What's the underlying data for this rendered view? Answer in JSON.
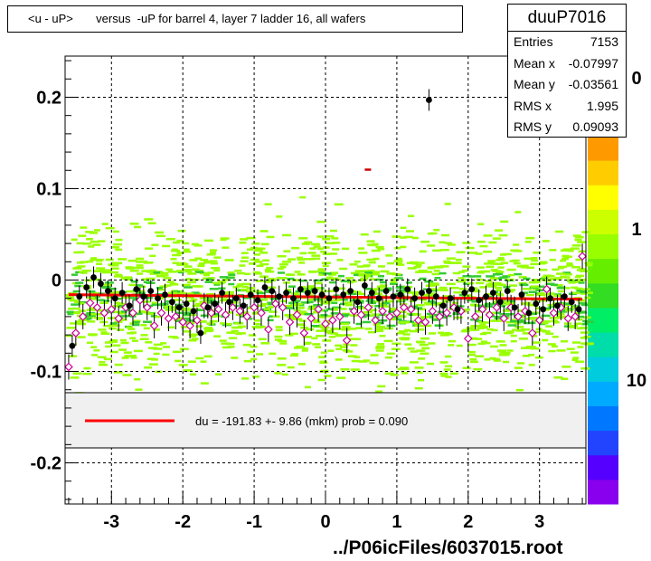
{
  "title": "<u - uP>       versus  -uP for barrel 4, layer 7 ladder 16, all wafers",
  "stats": {
    "name": "duuP7016",
    "rows": [
      {
        "key": "Entries",
        "value": "7153"
      },
      {
        "key": "Mean x",
        "value": "-0.07997"
      },
      {
        "key": "Mean y",
        "value": "-0.03561"
      },
      {
        "key": "RMS x",
        "value": "1.995"
      },
      {
        "key": "RMS y",
        "value": "0.09093"
      }
    ]
  },
  "fit_label": "du = -191.83 +-  9.86 (mkm) prob = 0.090",
  "footer": "../P06icFiles/6037015.root",
  "colors": {
    "fit_line": "#ff0000",
    "black_markers": "#000000",
    "open_markers": "#cc0099",
    "scatter_main": "#99ff00",
    "scatter_dense": "#33cc33",
    "legend_bg": "#f0f0f0"
  },
  "palette_labels": [
    "0",
    "1",
    "10"
  ],
  "chart_data": {
    "type": "scatter",
    "title": "<u - uP>       versus  -uP for barrel 4, layer 7 ladder 16, all wafers",
    "xlabel": "",
    "ylabel": "",
    "xlim": [
      -3.65,
      3.65
    ],
    "ylim": [
      -0.245,
      0.245
    ],
    "x_ticks": [
      -3,
      -2,
      -1,
      0,
      1,
      2,
      3
    ],
    "y_ticks": [
      0.2,
      0.1,
      0,
      -0.1,
      -0.2
    ],
    "y_tick_labels": [
      "0.2",
      "0.1",
      "0",
      "-0.1",
      "-0.2"
    ],
    "grid": true,
    "fit_line": {
      "x": [
        -3.6,
        3.6
      ],
      "y": [
        -0.016,
        -0.021
      ]
    },
    "series": [
      {
        "name": "",
        "marker": "filled-circle",
        "points": [
          [
            -3.55,
            -0.072
          ],
          [
            -3.45,
            -0.018
          ],
          [
            -3.35,
            -0.008
          ],
          [
            -3.25,
            0.003
          ],
          [
            -3.15,
            -0.004
          ],
          [
            -3.05,
            -0.012
          ],
          [
            -2.95,
            -0.02
          ],
          [
            -2.85,
            -0.014
          ],
          [
            -2.75,
            -0.028
          ],
          [
            -2.65,
            -0.01
          ],
          [
            -2.55,
            -0.018
          ],
          [
            -2.45,
            -0.012
          ],
          [
            -2.35,
            -0.02
          ],
          [
            -2.25,
            -0.016
          ],
          [
            -2.15,
            -0.024
          ],
          [
            -2.05,
            -0.03
          ],
          [
            -1.95,
            -0.026
          ],
          [
            -1.85,
            -0.034
          ],
          [
            -1.75,
            -0.058
          ],
          [
            -1.65,
            -0.03
          ],
          [
            -1.55,
            -0.026
          ],
          [
            -1.45,
            -0.014
          ],
          [
            -1.35,
            -0.024
          ],
          [
            -1.25,
            -0.02
          ],
          [
            -1.15,
            -0.028
          ],
          [
            -1.05,
            -0.016
          ],
          [
            -0.95,
            -0.022
          ],
          [
            -0.85,
            -0.008
          ],
          [
            -0.75,
            -0.012
          ],
          [
            -0.65,
            -0.018
          ],
          [
            -0.55,
            -0.014
          ],
          [
            -0.45,
            -0.02
          ],
          [
            -0.35,
            -0.01
          ],
          [
            -0.25,
            -0.014
          ],
          [
            -0.15,
            -0.012
          ],
          [
            -0.05,
            -0.016
          ],
          [
            0.05,
            -0.02
          ],
          [
            0.15,
            -0.01
          ],
          [
            0.25,
            -0.016
          ],
          [
            0.35,
            -0.012
          ],
          [
            0.45,
            -0.024
          ],
          [
            0.55,
            -0.006
          ],
          [
            0.65,
            -0.014
          ],
          [
            0.75,
            -0.02
          ],
          [
            0.85,
            -0.012
          ],
          [
            0.95,
            -0.018
          ],
          [
            1.05,
            -0.016
          ],
          [
            1.15,
            -0.01
          ],
          [
            1.25,
            -0.02
          ],
          [
            1.35,
            -0.014
          ],
          [
            1.45,
            -0.012
          ],
          [
            1.55,
            -0.018
          ],
          [
            1.65,
            -0.028
          ],
          [
            1.75,
            -0.02
          ],
          [
            1.85,
            -0.032
          ],
          [
            1.95,
            -0.014
          ],
          [
            2.05,
            -0.01
          ],
          [
            2.15,
            -0.022
          ],
          [
            2.25,
            -0.018
          ],
          [
            2.35,
            -0.014
          ],
          [
            2.45,
            -0.024
          ],
          [
            2.55,
            -0.012
          ],
          [
            2.65,
            -0.03
          ],
          [
            2.75,
            -0.016
          ],
          [
            2.85,
            -0.036
          ],
          [
            2.95,
            -0.026
          ],
          [
            3.05,
            -0.032
          ],
          [
            3.15,
            -0.02
          ],
          [
            3.25,
            -0.028
          ],
          [
            3.35,
            -0.018
          ],
          [
            3.45,
            -0.024
          ],
          [
            3.55,
            -0.032
          ],
          [
            1.45,
            0.197
          ]
        ]
      },
      {
        "name": "",
        "marker": "open-diamond",
        "points": [
          [
            -3.6,
            -0.095
          ],
          [
            -3.5,
            -0.058
          ],
          [
            -3.4,
            -0.04
          ],
          [
            -3.3,
            -0.025
          ],
          [
            -3.2,
            -0.03
          ],
          [
            -3.1,
            -0.036
          ],
          [
            -3.0,
            -0.032
          ],
          [
            -2.9,
            -0.042
          ],
          [
            -2.8,
            -0.03
          ],
          [
            -2.7,
            -0.036
          ],
          [
            -2.6,
            -0.022
          ],
          [
            -2.5,
            -0.03
          ],
          [
            -2.4,
            -0.05
          ],
          [
            -2.3,
            -0.036
          ],
          [
            -2.2,
            -0.042
          ],
          [
            -2.1,
            -0.04
          ],
          [
            -2.0,
            -0.046
          ],
          [
            -1.9,
            -0.05
          ],
          [
            -1.8,
            -0.044
          ],
          [
            -1.7,
            -0.028
          ],
          [
            -1.6,
            -0.036
          ],
          [
            -1.5,
            -0.032
          ],
          [
            -1.4,
            -0.038
          ],
          [
            -1.3,
            -0.03
          ],
          [
            -1.2,
            -0.034
          ],
          [
            -1.1,
            -0.04
          ],
          [
            -1.0,
            -0.03
          ],
          [
            -0.9,
            -0.036
          ],
          [
            -0.8,
            -0.054
          ],
          [
            -0.7,
            -0.026
          ],
          [
            -0.6,
            -0.03
          ],
          [
            -0.5,
            -0.046
          ],
          [
            -0.4,
            -0.038
          ],
          [
            -0.3,
            -0.058
          ],
          [
            -0.2,
            -0.042
          ],
          [
            -0.1,
            -0.032
          ],
          [
            0.0,
            -0.048
          ],
          [
            0.1,
            -0.044
          ],
          [
            0.2,
            -0.04
          ],
          [
            0.3,
            -0.066
          ],
          [
            0.4,
            -0.034
          ],
          [
            0.5,
            -0.038
          ],
          [
            0.6,
            -0.03
          ],
          [
            0.7,
            -0.044
          ],
          [
            0.8,
            -0.034
          ],
          [
            0.9,
            -0.04
          ],
          [
            1.0,
            -0.036
          ],
          [
            1.1,
            -0.03
          ],
          [
            1.2,
            -0.032
          ],
          [
            1.3,
            -0.044
          ],
          [
            1.4,
            -0.046
          ],
          [
            1.5,
            -0.034
          ],
          [
            1.6,
            -0.04
          ],
          [
            1.7,
            -0.036
          ],
          [
            1.8,
            -0.03
          ],
          [
            1.9,
            -0.034
          ],
          [
            2.0,
            -0.064
          ],
          [
            2.1,
            -0.04
          ],
          [
            2.2,
            -0.032
          ],
          [
            2.3,
            -0.038
          ],
          [
            2.4,
            -0.03
          ],
          [
            2.5,
            -0.042
          ],
          [
            2.6,
            -0.03
          ],
          [
            2.7,
            -0.04
          ],
          [
            2.8,
            -0.034
          ],
          [
            2.9,
            -0.058
          ],
          [
            3.0,
            -0.044
          ],
          [
            3.1,
            -0.01
          ],
          [
            3.2,
            -0.036
          ],
          [
            3.3,
            -0.03
          ],
          [
            3.4,
            -0.042
          ],
          [
            3.5,
            -0.04
          ],
          [
            3.6,
            0.026
          ]
        ]
      }
    ]
  }
}
